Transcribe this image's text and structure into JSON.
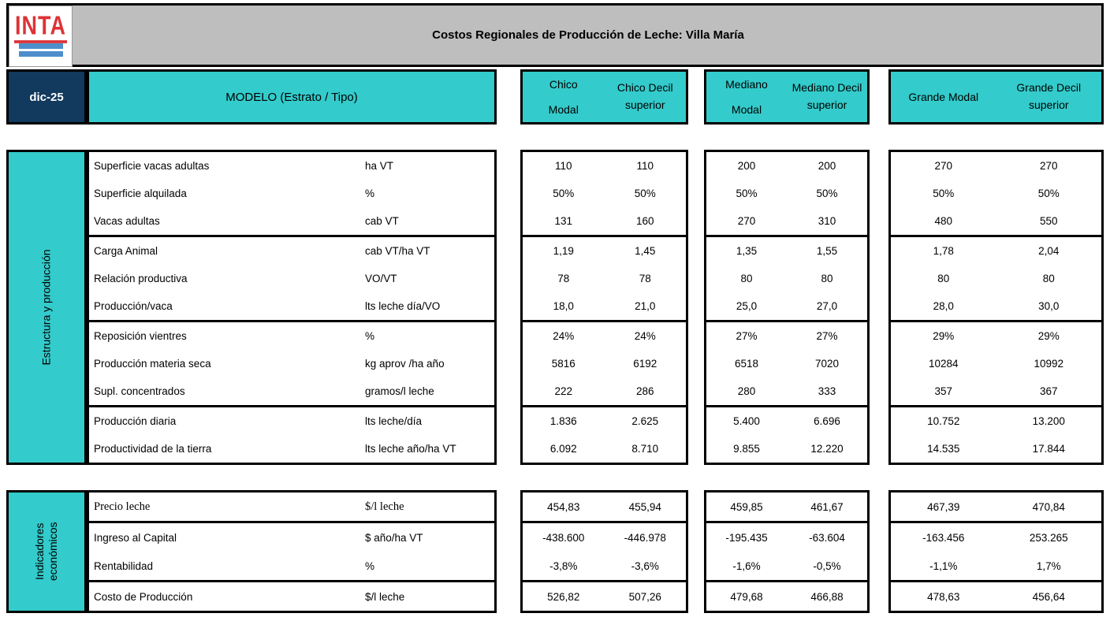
{
  "header": {
    "title": "Costos Regionales de Producción de Leche: Villa María"
  },
  "logo": {
    "text": "INTA"
  },
  "period": "dic-25",
  "model_header": "MODELO (Estrato / Tipo)",
  "colors": {
    "teal": "#33CBCB",
    "navy": "#12395E",
    "titlebar_gray": "#BEBEBE",
    "logo_red": "#DD3337",
    "logo_blue": "#4E8ECB"
  },
  "col_groups": [
    {
      "cols": [
        "Chico Modal",
        "Chico Decil superior"
      ]
    },
    {
      "cols": [
        "Mediano Modal",
        "Mediano Decil superior"
      ]
    },
    {
      "cols": [
        "Grande Modal",
        "Grande Decil superior"
      ]
    }
  ],
  "sections": [
    {
      "sidebar": "Estructura y producción",
      "groups": [
        {
          "rows": [
            {
              "label": "Superficie vacas adultas",
              "unit": "ha VT",
              "values": [
                "110",
                "110",
                "200",
                "200",
                "270",
                "270"
              ]
            },
            {
              "label": "Superficie alquilada",
              "unit": "%",
              "values": [
                "50%",
                "50%",
                "50%",
                "50%",
                "50%",
                "50%"
              ]
            },
            {
              "label": "Vacas adultas",
              "unit": "cab VT",
              "values": [
                "131",
                "160",
                "270",
                "310",
                "480",
                "550"
              ]
            }
          ]
        },
        {
          "rows": [
            {
              "label": "Carga Animal",
              "unit": "cab VT/ha VT",
              "values": [
                "1,19",
                "1,45",
                "1,35",
                "1,55",
                "1,78",
                "2,04"
              ]
            },
            {
              "label": "Relación productiva",
              "unit": "VO/VT",
              "values": [
                "78",
                "78",
                "80",
                "80",
                "80",
                "80"
              ]
            },
            {
              "label": "Producción/vaca",
              "unit": "lts leche día/VO",
              "values": [
                "18,0",
                "21,0",
                "25,0",
                "27,0",
                "28,0",
                "30,0"
              ]
            }
          ]
        },
        {
          "rows": [
            {
              "label": "Reposición vientres",
              "unit": "%",
              "values": [
                "24%",
                "24%",
                "27%",
                "27%",
                "29%",
                "29%"
              ]
            },
            {
              "label": "Producción materia seca",
              "unit": "kg aprov /ha año",
              "values": [
                "5816",
                "6192",
                "6518",
                "7020",
                "10284",
                "10992"
              ]
            },
            {
              "label": "Supl. concentrados",
              "unit": "gramos/l leche",
              "values": [
                "222",
                "286",
                "280",
                "333",
                "357",
                "367"
              ]
            }
          ]
        },
        {
          "rows": [
            {
              "label": "Producción diaria",
              "unit": "lts leche/día",
              "values": [
                "1.836",
                "2.625",
                "5.400",
                "6.696",
                "10.752",
                "13.200"
              ]
            },
            {
              "label": "Productividad de la tierra",
              "unit": "lts leche año/ha VT",
              "values": [
                "6.092",
                "8.710",
                "9.855",
                "12.220",
                "14.535",
                "17.844"
              ]
            }
          ]
        }
      ]
    },
    {
      "sidebar": "Indicadores económicos",
      "groups": [
        {
          "rows": [
            {
              "label": "Precio leche",
              "unit": "$/l leche",
              "serif": true,
              "values": [
                "454,83",
                "455,94",
                "459,85",
                "461,67",
                "467,39",
                "470,84"
              ]
            }
          ]
        },
        {
          "rows": [
            {
              "label": "Ingreso al Capital",
              "unit": "$ año/ha VT",
              "values": [
                "-438.600",
                "-446.978",
                "-195.435",
                "-63.604",
                "-163.456",
                "253.265"
              ]
            },
            {
              "label": "Rentabilidad",
              "unit": "%",
              "values": [
                "-3,8%",
                "-3,6%",
                "-1,6%",
                "-0,5%",
                "-1,1%",
                "1,7%"
              ]
            }
          ]
        },
        {
          "rows": [
            {
              "label": "Costo de Producción",
              "unit": "$/l leche",
              "values": [
                "526,82",
                "507,26",
                "479,68",
                "466,88",
                "478,63",
                "456,64"
              ]
            }
          ]
        }
      ]
    }
  ]
}
